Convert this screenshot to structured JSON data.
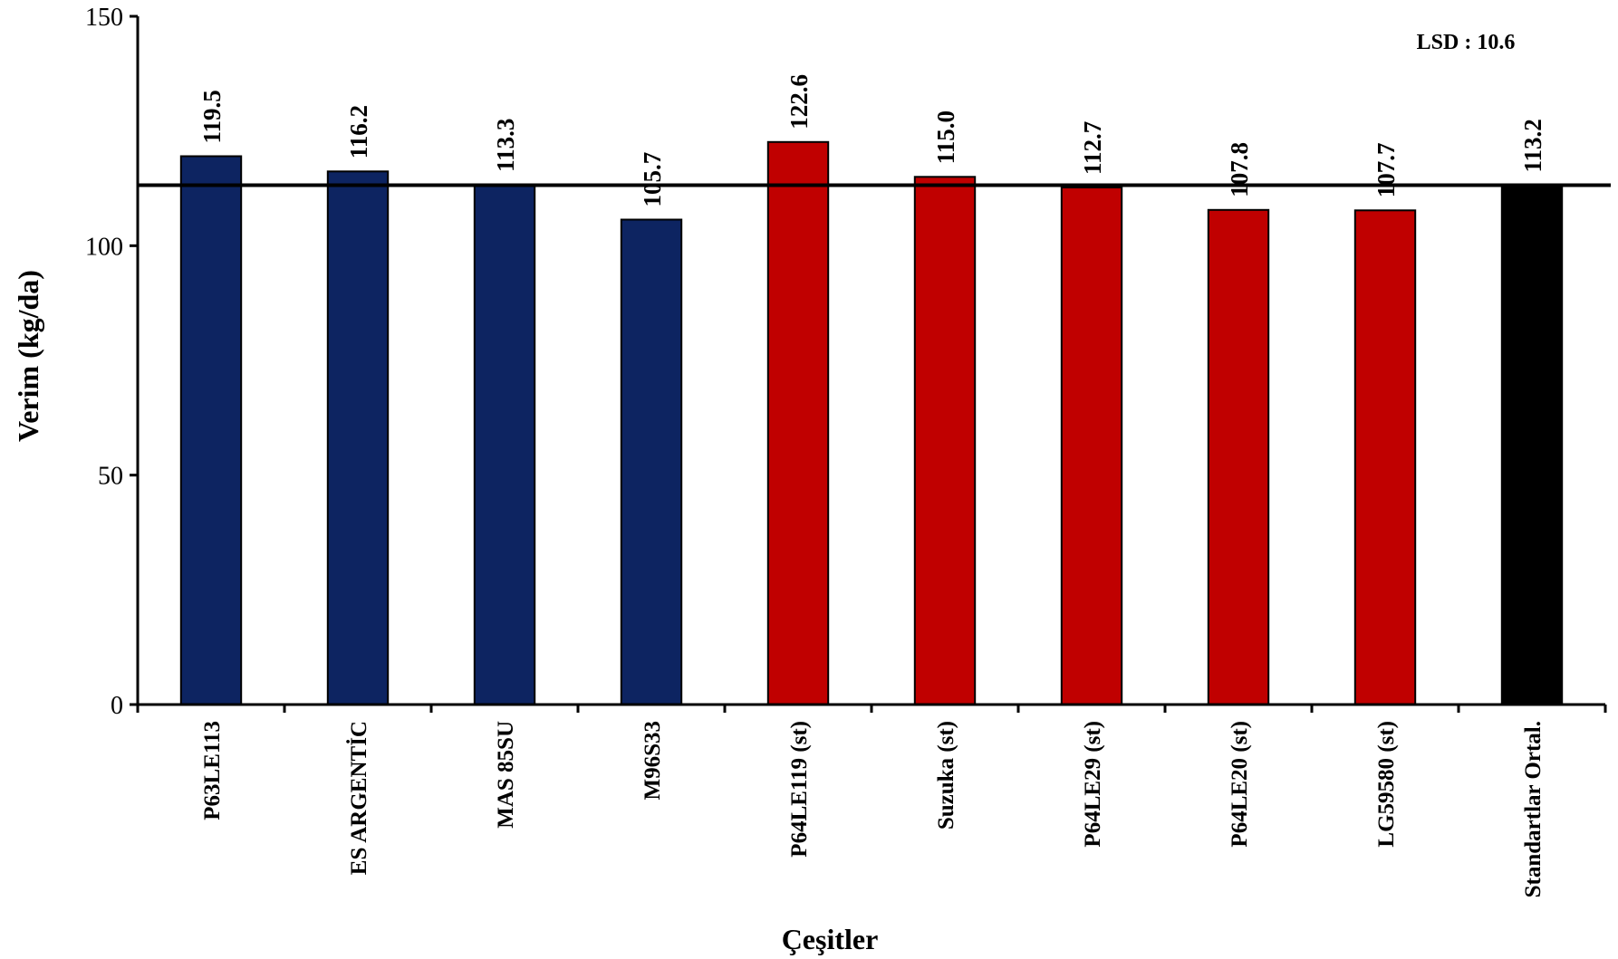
{
  "chart_data": {
    "type": "bar",
    "categories": [
      "P63LE113",
      "ES ARGENTİC",
      "MAS 85SU",
      "M96S33",
      "P64LE119 (st)",
      "Suzuka (st)",
      "P64LE29 (st)",
      "P64LE20 (st)",
      "LG59580 (st)",
      "Standartlar Ortal."
    ],
    "values": [
      119.5,
      116.2,
      113.3,
      105.7,
      122.6,
      115.0,
      112.7,
      107.8,
      107.7,
      113.2
    ],
    "value_labels": [
      "119.5",
      "116.2",
      "113.3",
      "105.7",
      "122.6",
      "115.0",
      "112.7",
      "107.8",
      "107.7",
      "113.2"
    ],
    "bar_colors": [
      "#0d2461",
      "#0d2461",
      "#0d2461",
      "#0d2461",
      "#c00000",
      "#c00000",
      "#c00000",
      "#c00000",
      "#c00000",
      "#000000"
    ],
    "xlabel": "Çeşitler",
    "ylabel": "Verim (kg/da)",
    "ylim": [
      0,
      150
    ],
    "yticks": [
      0,
      50,
      100,
      150
    ],
    "ytick_labels": [
      "0",
      "50",
      "100",
      "150"
    ],
    "reference_line": {
      "value": 113.2
    },
    "annotation": "LSD : 10.6",
    "grid": false,
    "legend": "none"
  }
}
